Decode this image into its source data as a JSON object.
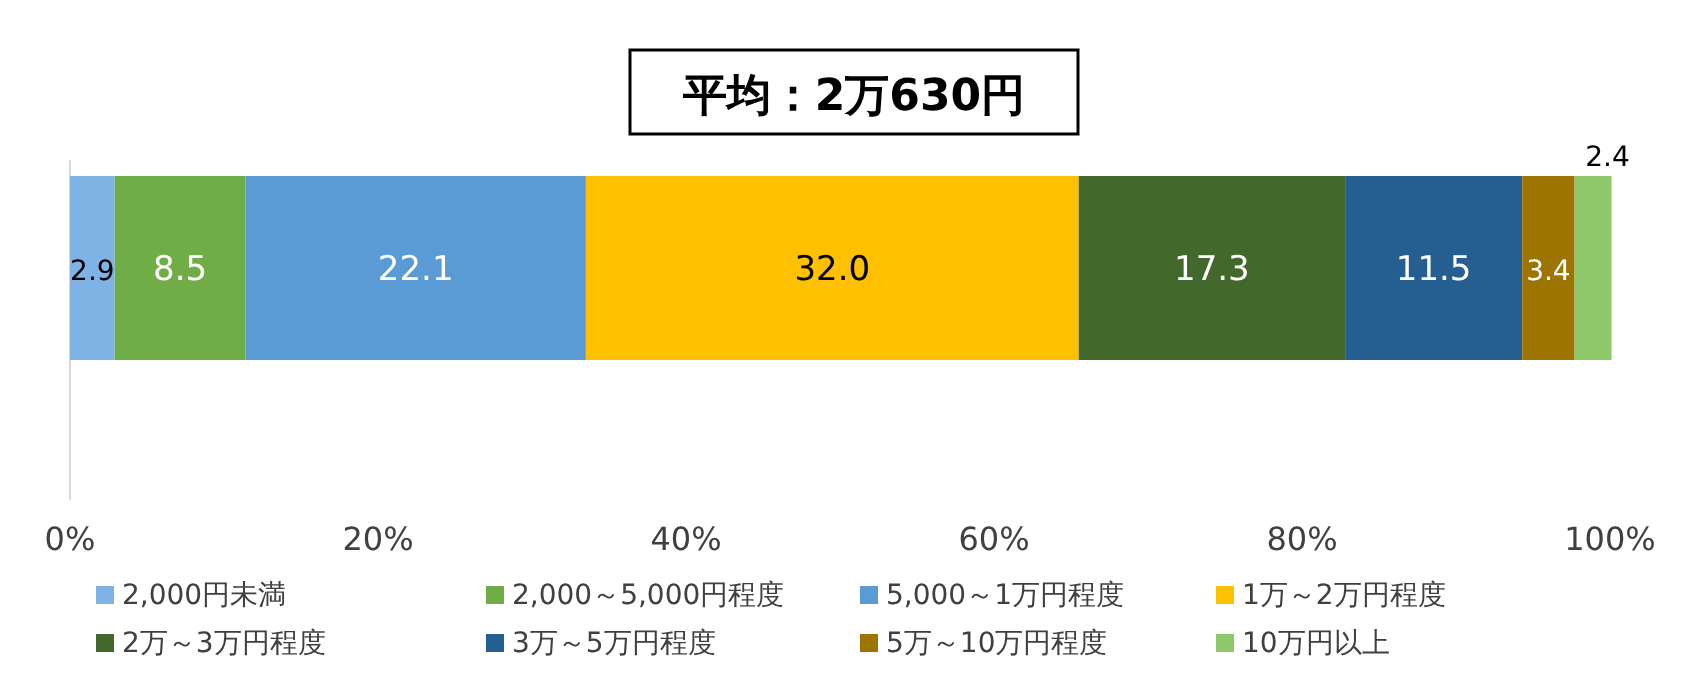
{
  "chart_data": {
    "type": "bar",
    "orientation": "horizontal",
    "stacked": true,
    "title": "平均：2万630円",
    "categories": [
      null
    ],
    "series": [
      {
        "name": "2,000円未満",
        "color": "#7fb2e5",
        "values": [
          2.9
        ],
        "value_labels": [
          "2.9"
        ]
      },
      {
        "name": "2,000～5,000円程度",
        "color": "#70ad47",
        "values": [
          8.5
        ],
        "value_labels": [
          "8.5"
        ]
      },
      {
        "name": "5,000～1万円程度",
        "color": "#5b9bd5",
        "values": [
          22.1
        ],
        "value_labels": [
          "22.1"
        ]
      },
      {
        "name": "1万～2万円程度",
        "color": "#ffc000",
        "values": [
          32.0
        ],
        "value_labels": [
          "32.0"
        ]
      },
      {
        "name": "2万～3万円程度",
        "color": "#43682b",
        "values": [
          17.3
        ],
        "value_labels": [
          "17.3"
        ]
      },
      {
        "name": "3万～5万円程度",
        "color": "#255e91",
        "values": [
          11.5
        ],
        "value_labels": [
          "11.5"
        ]
      },
      {
        "name": "5万～10万円程度",
        "color": "#9e7400",
        "values": [
          3.4
        ],
        "value_labels": [
          "3.4"
        ]
      },
      {
        "name": "10万円以上",
        "color": "#8fc86a",
        "values": [
          2.4
        ],
        "value_labels": [
          "2.4"
        ]
      }
    ],
    "xlim": [
      0,
      100
    ],
    "xticks": [
      {
        "value": 0,
        "label": "0%"
      },
      {
        "value": 20,
        "label": "20%"
      },
      {
        "value": 40,
        "label": "40%"
      },
      {
        "value": 60,
        "label": "60%"
      },
      {
        "value": 80,
        "label": "80%"
      },
      {
        "value": 100,
        "label": "100%"
      }
    ],
    "grid": false,
    "legend": "bottom"
  }
}
